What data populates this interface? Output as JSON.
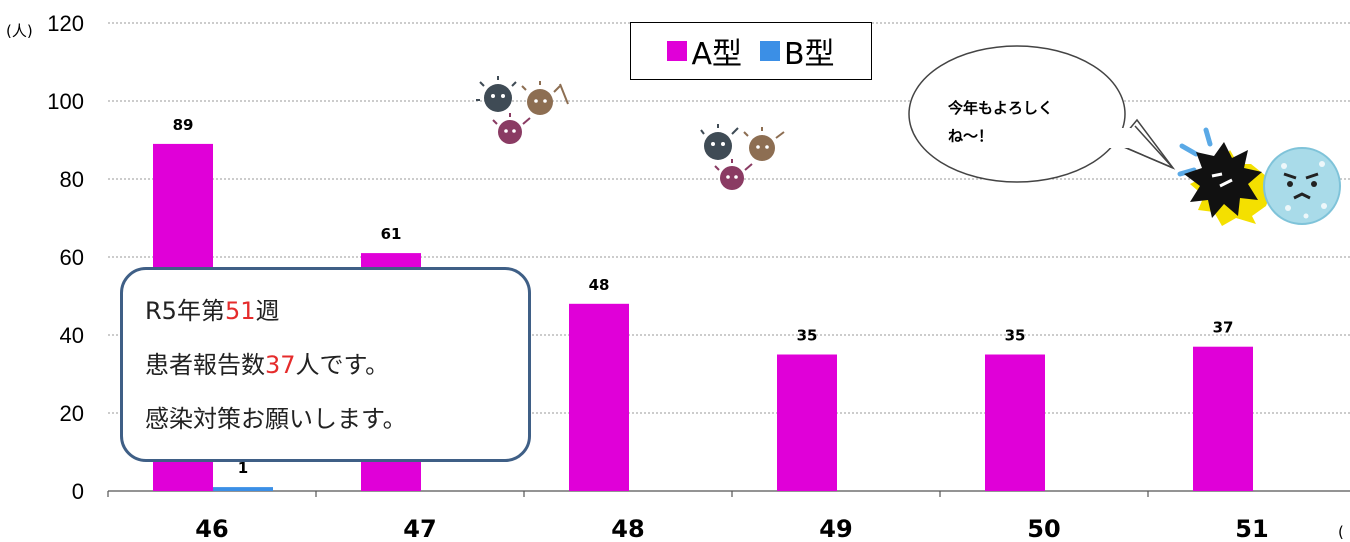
{
  "chart_data": {
    "type": "bar",
    "categories": [
      "46",
      "47",
      "48",
      "49",
      "50",
      "51"
    ],
    "series": [
      {
        "name": "A型",
        "values": [
          89,
          61,
          48,
          35,
          35,
          37
        ],
        "color": "#e000d8"
      },
      {
        "name": "B型",
        "values": [
          1,
          null,
          null,
          null,
          null,
          null
        ],
        "color": "#3b8fe6"
      }
    ],
    "yticks": [
      "0",
      "20",
      "40",
      "60",
      "80",
      "100",
      "120"
    ],
    "ylim": [
      0,
      120
    ],
    "y_unit": "(人)",
    "x_unit_partial": "(",
    "grid": "horizontal dotted",
    "legend_position": "top-center",
    "data_labels": [
      "89",
      "61",
      "48",
      "35",
      "35",
      "37",
      "1"
    ]
  },
  "legend": [
    {
      "label": "A型",
      "color": "#e000d8"
    },
    {
      "label": "B型",
      "color": "#3b8fe6"
    }
  ],
  "callout": {
    "line1_prefix": "R5年第",
    "line1_highlight": "51",
    "line1_suffix": "週",
    "line2_prefix": "患者報告数",
    "line2_highlight": "37",
    "line2_suffix": "人です。",
    "line3": "感染対策お願いします。"
  },
  "speech_bubble": {
    "line1": "今年もよろしく",
    "line2": "ね～！"
  },
  "illustrations": [
    "virus-group-icon",
    "virus-group-icon",
    "vaccine-fighting-virus-icon"
  ]
}
